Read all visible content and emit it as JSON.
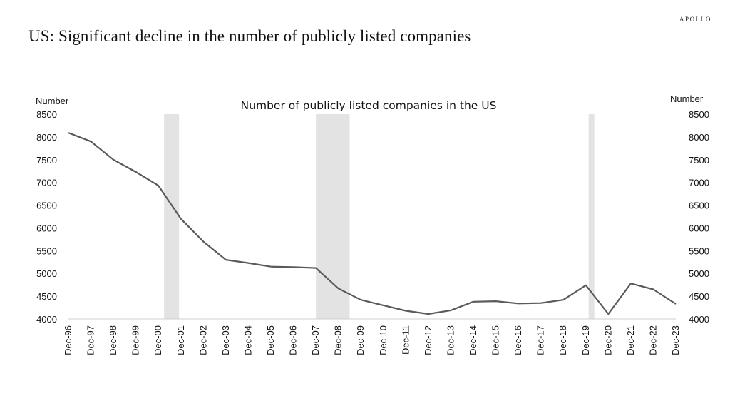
{
  "brand": "APOLLO",
  "headline": "US: Significant decline in the number of publicly listed companies",
  "chart_data": {
    "type": "line",
    "title": "Number of publicly listed companies in the US",
    "ylabel_left": "Number",
    "ylabel_right": "Number",
    "ylim": [
      4000,
      8500
    ],
    "yticks": [
      4000,
      4500,
      5000,
      5500,
      6000,
      6500,
      7000,
      7500,
      8000,
      8500
    ],
    "categories": [
      "Dec-96",
      "Dec-97",
      "Dec-98",
      "Dec-99",
      "Dec-00",
      "Dec-01",
      "Dec-02",
      "Dec-03",
      "Dec-04",
      "Dec-05",
      "Dec-06",
      "Dec-07",
      "Dec-08",
      "Dec-09",
      "Dec-10",
      "Dec-11",
      "Dec-12",
      "Dec-13",
      "Dec-14",
      "Dec-15",
      "Dec-16",
      "Dec-17",
      "Dec-18",
      "Dec-19",
      "Dec-20",
      "Dec-21",
      "Dec-22",
      "Dec-23"
    ],
    "series": [
      {
        "values": [
          8090,
          7900,
          7500,
          7230,
          6930,
          6200,
          5700,
          5300,
          5230,
          5150,
          5140,
          5120,
          4670,
          4420,
          4300,
          4180,
          4110,
          4190,
          4380,
          4390,
          4340,
          4350,
          4420,
          4740,
          4110,
          4780,
          4650,
          4330
        ],
        "color": "#5a5a5a"
      }
    ],
    "recession_bands": [
      {
        "start": "Mar-01",
        "end": "Nov-01"
      },
      {
        "start": "Dec-07",
        "end": "Jun-09"
      },
      {
        "start": "Feb-20",
        "end": "Apr-20"
      }
    ],
    "band_color": "#e3e3e3",
    "grid": false,
    "legend": "none"
  }
}
